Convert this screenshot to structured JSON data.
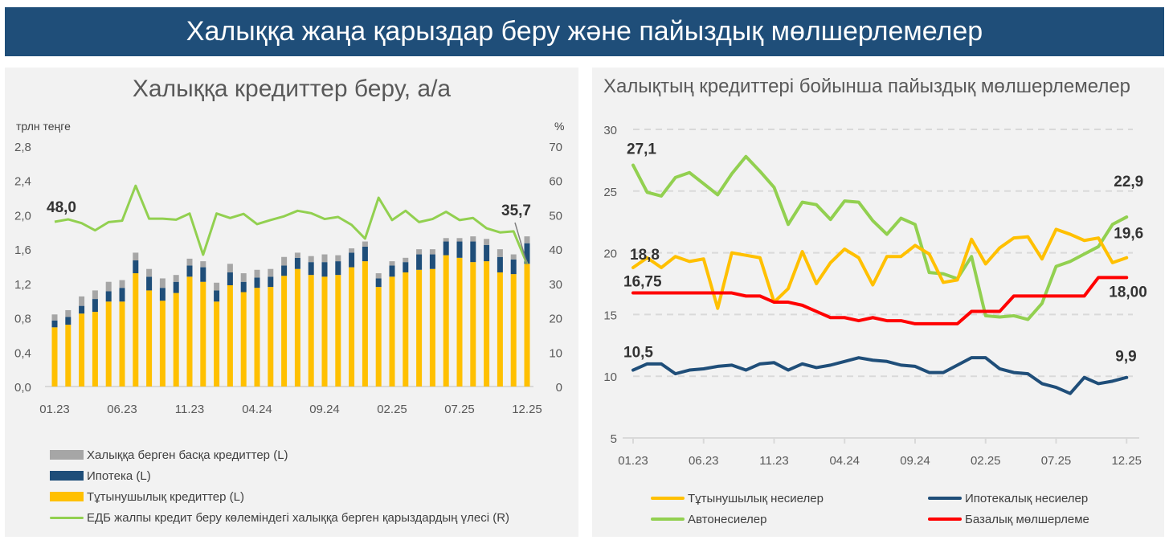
{
  "banner": {
    "title": "Халыққа жаңа қарыздар беру және пайыздық мөлшерлемелер"
  },
  "colors": {
    "banner_bg": "#1f4e79",
    "other": "#a6a6a6",
    "mortgage": "#1f4e79",
    "consumer": "#ffc000",
    "share": "#92d050",
    "consumer_rate": "#ffc000",
    "mortgage_rate": "#1f4e79",
    "auto_rate": "#92d050",
    "base_rate": "#ff0000"
  },
  "left_chart": {
    "title": "Халыққа кредиттер беру, а/а",
    "left_unit": "трлн теңге",
    "right_unit": "%",
    "legend": [
      {
        "key": "other",
        "label": "Халыққа берген басқа кредиттер (L)",
        "kind": "box"
      },
      {
        "key": "mortgage",
        "label": "Ипотека (L)",
        "kind": "box"
      },
      {
        "key": "consumer",
        "label": "Тұтынушылық кредиттер (L)",
        "kind": "box"
      },
      {
        "key": "share",
        "label": "ЕДБ жалпы кредит беру көлеміндегі халыққа берген қарыздардың үлесі (R)",
        "kind": "line"
      }
    ],
    "start_label": "48,0",
    "end_label": "35,7"
  },
  "right_chart": {
    "title": "Халықтың кредиттері бойынша пайыздық мөлшерлемелер",
    "legend": [
      {
        "key": "consumer_rate",
        "label": "Тұтынушылық несиелер"
      },
      {
        "key": "mortgage_rate",
        "label": "Ипотекалық несиелер"
      },
      {
        "key": "auto_rate",
        "label": "Автонесиелер"
      },
      {
        "key": "base_rate",
        "label": "Базалық мөлшерлеме"
      }
    ],
    "labels": {
      "auto_start": "27,1",
      "consumer_start": "18,8",
      "base_start": "16,75",
      "mortgage_start": "10,5",
      "auto_end": "22,9",
      "consumer_end": "19,6",
      "base_end": "18,00",
      "mortgage_end": "9,9"
    }
  },
  "chart_data": [
    {
      "type": "bar",
      "stacked": true,
      "title": "Халыққа кредиттер беру, а/а",
      "ylabel": "трлн теңге",
      "y2label": "%",
      "ylim": [
        0,
        2.8
      ],
      "y2lim": [
        0,
        70
      ],
      "yticks": [
        "0,0",
        "0,4",
        "0,8",
        "1,2",
        "1,6",
        "2,0",
        "2,4",
        "2,8"
      ],
      "y2ticks": [
        "0",
        "10",
        "20",
        "30",
        "40",
        "50",
        "60",
        "70"
      ],
      "xticks": [
        "01.23",
        "06.23",
        "11.23",
        "04.24",
        "09.24",
        "02.25",
        "07.25",
        "12.25"
      ],
      "categories": [
        "01.23",
        "02.23",
        "03.23",
        "04.23",
        "05.23",
        "06.23",
        "07.23",
        "08.23",
        "09.23",
        "10.23",
        "11.23",
        "12.23",
        "01.24",
        "02.24",
        "03.24",
        "04.24",
        "05.24",
        "06.24",
        "07.24",
        "08.24",
        "09.24",
        "10.24",
        "11.24",
        "12.24",
        "01.25",
        "02.25",
        "03.25",
        "04.25",
        "05.25",
        "06.25",
        "07.25",
        "08.25",
        "09.25",
        "10.25",
        "11.25",
        "12.25"
      ],
      "series": [
        {
          "name": "Тұтынушылық кредиттер (L)",
          "axis": "left",
          "kind": "bar",
          "values": [
            0.69,
            0.72,
            0.85,
            0.87,
            0.99,
            0.99,
            1.32,
            1.12,
            1.0,
            1.09,
            1.28,
            1.22,
            0.99,
            1.18,
            1.1,
            1.15,
            1.16,
            1.29,
            1.37,
            1.3,
            1.28,
            1.3,
            1.39,
            1.46,
            1.16,
            1.28,
            1.33,
            1.36,
            1.37,
            1.53,
            1.5,
            1.45,
            1.46,
            1.33,
            1.31,
            1.43
          ]
        },
        {
          "name": "Ипотека (L)",
          "axis": "left",
          "kind": "bar",
          "values": [
            0.08,
            0.09,
            0.09,
            0.15,
            0.12,
            0.16,
            0.15,
            0.16,
            0.15,
            0.13,
            0.13,
            0.17,
            0.13,
            0.15,
            0.12,
            0.12,
            0.12,
            0.12,
            0.13,
            0.15,
            0.17,
            0.16,
            0.17,
            0.17,
            0.1,
            0.13,
            0.12,
            0.18,
            0.17,
            0.16,
            0.19,
            0.24,
            0.19,
            0.18,
            0.17,
            0.24
          ]
        },
        {
          "name": "Халыққа берген басқа кредиттер (L)",
          "axis": "left",
          "kind": "bar",
          "values": [
            0.07,
            0.08,
            0.11,
            0.1,
            0.11,
            0.09,
            0.09,
            0.09,
            0.11,
            0.08,
            0.08,
            0.07,
            0.09,
            0.1,
            0.1,
            0.09,
            0.09,
            0.1,
            0.06,
            0.07,
            0.09,
            0.07,
            0.05,
            0.06,
            0.06,
            0.05,
            0.05,
            0.06,
            0.06,
            0.04,
            0.04,
            0.06,
            0.07,
            0.09,
            0.06,
            0.08
          ]
        },
        {
          "name": "ЕДБ жалпы кредит беру көлеміндегі халыққа берген қарыздардың үлесі (R)",
          "axis": "right",
          "kind": "line",
          "values": [
            48.0,
            48.7,
            47.6,
            45.5,
            47.9,
            48.3,
            58.5,
            48.9,
            48.9,
            48.6,
            50.4,
            38.4,
            50.4,
            49.1,
            50.3,
            47.3,
            48.5,
            49.6,
            51.2,
            50.5,
            48.8,
            49.4,
            47.1,
            43.1,
            55.0,
            48.5,
            51.2,
            47.9,
            48.8,
            50.9,
            48.5,
            49.1,
            46.1,
            44.9,
            45.2,
            35.7
          ]
        }
      ],
      "annotations": [
        {
          "index": 0,
          "text": "48,0"
        },
        {
          "index": 35,
          "text": "35,7"
        }
      ],
      "legend_position": "bottom"
    },
    {
      "type": "line",
      "title": "Халықтың кредиттері бойынша пайыздық мөлшерлемелер",
      "ylim": [
        5,
        30
      ],
      "yticks": [
        "5",
        "10",
        "15",
        "20",
        "25",
        "30"
      ],
      "xticks": [
        "01.23",
        "06.23",
        "11.23",
        "04.24",
        "09.24",
        "02.25",
        "07.25",
        "12.25"
      ],
      "grid": "horizontal-dashed",
      "categories": [
        "01.23",
        "02.23",
        "03.23",
        "04.23",
        "05.23",
        "06.23",
        "07.23",
        "08.23",
        "09.23",
        "10.23",
        "11.23",
        "12.23",
        "01.24",
        "02.24",
        "03.24",
        "04.24",
        "05.24",
        "06.24",
        "07.24",
        "08.24",
        "09.24",
        "10.24",
        "11.24",
        "12.24",
        "01.25",
        "02.25",
        "03.25",
        "04.25",
        "05.25",
        "06.25",
        "07.25",
        "08.25",
        "09.25",
        "10.25",
        "11.25",
        "12.25"
      ],
      "series": [
        {
          "name": "Тұтынушылық несиелер",
          "values": [
            18.8,
            19.6,
            18.8,
            19.7,
            19.3,
            19.5,
            15.5,
            20.0,
            19.8,
            19.6,
            16.0,
            17.1,
            20.1,
            17.5,
            19.2,
            20.3,
            19.6,
            17.4,
            19.7,
            19.7,
            20.6,
            19.9,
            17.6,
            17.8,
            21.1,
            19.1,
            20.4,
            21.2,
            21.3,
            19.5,
            21.9,
            21.5,
            21.0,
            21.2,
            19.2,
            19.6
          ]
        },
        {
          "name": "Ипотекалық несиелер",
          "values": [
            10.5,
            11.0,
            11.0,
            10.2,
            10.5,
            10.6,
            10.8,
            10.9,
            10.5,
            11.0,
            11.1,
            10.5,
            11.0,
            10.7,
            10.9,
            11.2,
            11.5,
            11.3,
            11.2,
            10.9,
            10.8,
            10.3,
            10.3,
            10.9,
            11.5,
            11.5,
            10.6,
            10.3,
            10.2,
            9.4,
            9.1,
            8.6,
            9.9,
            9.4,
            9.6,
            9.9
          ]
        },
        {
          "name": "Автонесиелер",
          "values": [
            27.1,
            24.9,
            24.6,
            26.1,
            26.5,
            25.6,
            24.7,
            26.4,
            27.8,
            26.6,
            25.3,
            22.3,
            24.1,
            23.9,
            22.7,
            24.2,
            24.1,
            22.6,
            21.5,
            22.8,
            22.3,
            18.4,
            18.3,
            17.9,
            19.7,
            14.9,
            14.8,
            14.9,
            14.6,
            15.9,
            18.9,
            19.3,
            19.9,
            20.5,
            22.3,
            22.9
          ]
        },
        {
          "name": "Базалық мөлшерлеме",
          "values": [
            16.75,
            16.75,
            16.75,
            16.75,
            16.75,
            16.75,
            16.75,
            16.75,
            16.5,
            16.5,
            16.0,
            16.0,
            15.75,
            15.25,
            14.75,
            14.75,
            14.5,
            14.75,
            14.5,
            14.5,
            14.25,
            14.25,
            14.25,
            14.25,
            15.25,
            15.25,
            15.25,
            16.5,
            16.5,
            16.5,
            16.5,
            16.5,
            16.5,
            18.0,
            18.0,
            18.0
          ]
        }
      ],
      "annotations": [
        {
          "series": "Автонесиелер",
          "index": 0,
          "text": "27,1"
        },
        {
          "series": "Тұтынушылық несиелер",
          "index": 0,
          "text": "18,8"
        },
        {
          "series": "Базалық мөлшерлеме",
          "index": 0,
          "text": "16,75"
        },
        {
          "series": "Ипотекалық несиелер",
          "index": 0,
          "text": "10,5"
        },
        {
          "series": "Автонесиелер",
          "index": 35,
          "text": "22,9"
        },
        {
          "series": "Тұтынушылық несиелер",
          "index": 35,
          "text": "19,6"
        },
        {
          "series": "Базалық мөлшерлеме",
          "index": 35,
          "text": "18,00"
        },
        {
          "series": "Ипотекалық несиелер",
          "index": 35,
          "text": "9,9"
        }
      ],
      "legend_position": "bottom"
    }
  ]
}
